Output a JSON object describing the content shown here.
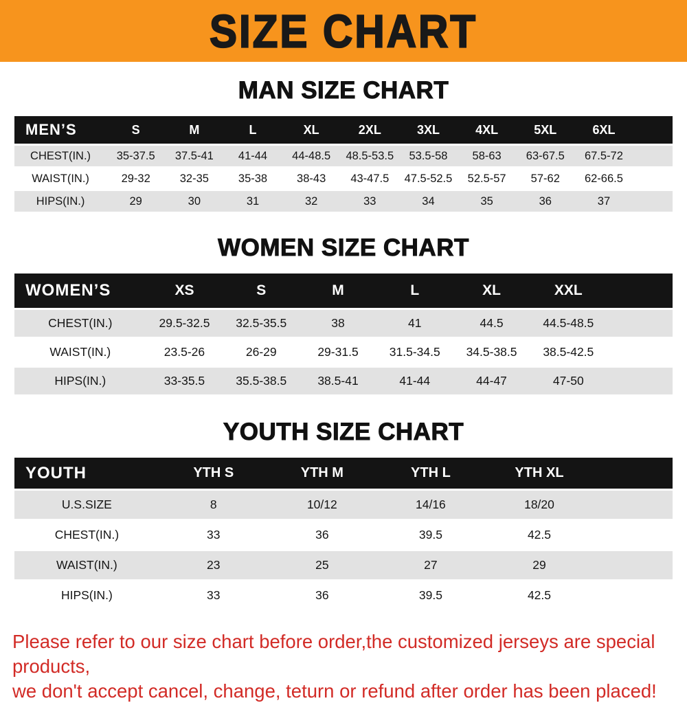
{
  "banner": {
    "title": "SIZE CHART"
  },
  "colors": {
    "banner_bg": "#f7941d",
    "table_header_bg": "#141414",
    "row_alt_gray": "#e2e2e2",
    "footer_red": "#d22b26"
  },
  "sections": [
    {
      "heading": "MAN SIZE CHART",
      "table": {
        "corner_label": "MEN’S",
        "columns": [
          "S",
          "M",
          "L",
          "XL",
          "2XL",
          "3XL",
          "4XL",
          "5XL",
          "6XL"
        ],
        "rows": [
          {
            "label": "CHEST(IN.)",
            "values": [
              "35-37.5",
              "37.5-41",
              "41-44",
              "44-48.5",
              "48.5-53.5",
              "53.5-58",
              "58-63",
              "63-67.5",
              "67.5-72"
            ]
          },
          {
            "label": "WAIST(IN.)",
            "values": [
              "29-32",
              "32-35",
              "35-38",
              "38-43",
              "43-47.5",
              "47.5-52.5",
              "52.5-57",
              "57-62",
              "62-66.5"
            ]
          },
          {
            "label": "HIPS(IN.)",
            "values": [
              "29",
              "30",
              "31",
              "32",
              "33",
              "34",
              "35",
              "36",
              "37"
            ]
          }
        ]
      }
    },
    {
      "heading": "WOMEN SIZE CHART",
      "table": {
        "corner_label": "WOMEN’S",
        "columns": [
          "XS",
          "S",
          "M",
          "L",
          "XL",
          "XXL"
        ],
        "rows": [
          {
            "label": "CHEST(IN.)",
            "values": [
              "29.5-32.5",
              "32.5-35.5",
              "38",
              "41",
              "44.5",
              "44.5-48.5"
            ]
          },
          {
            "label": "WAIST(IN.)",
            "values": [
              "23.5-26",
              "26-29",
              "29-31.5",
              "31.5-34.5",
              "34.5-38.5",
              "38.5-42.5"
            ]
          },
          {
            "label": "HIPS(IN.)",
            "values": [
              "33-35.5",
              "35.5-38.5",
              "38.5-41",
              "41-44",
              "44-47",
              "47-50"
            ]
          }
        ]
      }
    },
    {
      "heading": "YOUTH SIZE CHART",
      "table": {
        "corner_label": "YOUTH",
        "columns": [
          "YTH S",
          "YTH M",
          "YTH L",
          "YTH XL"
        ],
        "rows": [
          {
            "label": "U.S.SIZE",
            "values": [
              "8",
              "10/12",
              "14/16",
              "18/20"
            ]
          },
          {
            "label": "CHEST(IN.)",
            "values": [
              "33",
              "36",
              "39.5",
              "42.5"
            ]
          },
          {
            "label": "WAIST(IN.)",
            "values": [
              "23",
              "25",
              "27",
              "29"
            ]
          },
          {
            "label": "HIPS(IN.)",
            "values": [
              "33",
              "36",
              "39.5",
              "42.5"
            ]
          }
        ]
      }
    }
  ],
  "footer": {
    "line1": "Please refer to our size chart before order,the customized jerseys are special products,",
    "line2": "we don't accept cancel, change, teturn or refund after order has been placed!"
  }
}
